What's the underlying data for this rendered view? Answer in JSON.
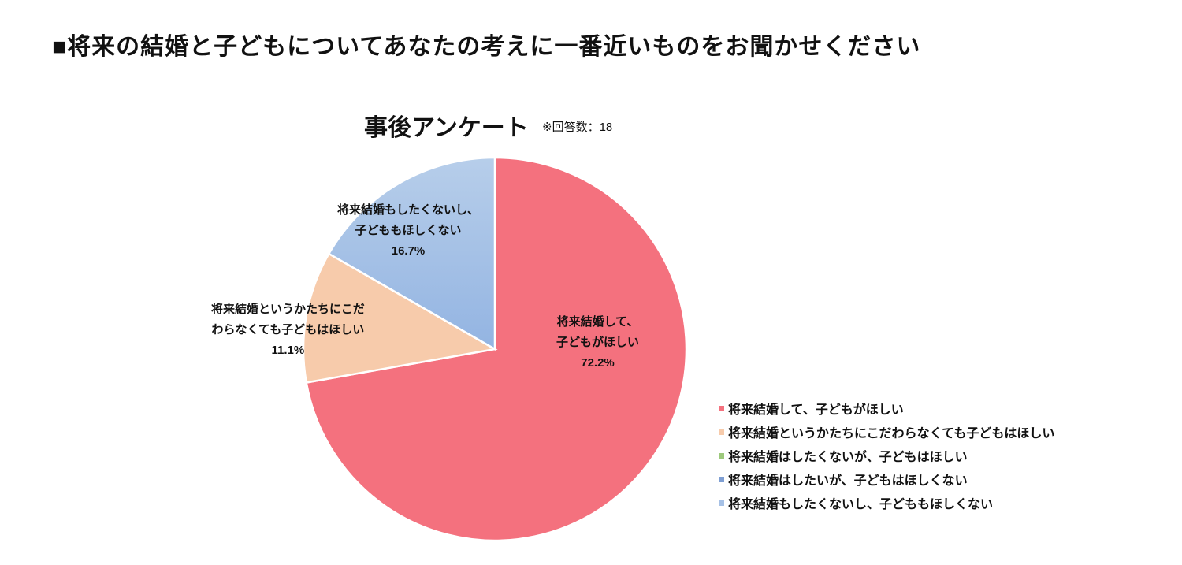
{
  "page_title": "■将来の結婚と子どもについてあなたの考えに一番近いものをお聞かせください",
  "chart_data": {
    "type": "pie",
    "title": "事後アンケート",
    "note": "※回答数：18",
    "legend_position": "bottom-right",
    "categories": [
      "将来結婚して、子どもがほしい",
      "将来結婚というかたちにこだわらなくても子どもはほしい",
      "将来結婚はしたくないが、子どもはほしい",
      "将来結婚はしたいが、子どもはほしくない",
      "将来結婚もしたくないし、子どももほしくない"
    ],
    "values": [
      72.2,
      11.1,
      0,
      0,
      16.7
    ],
    "colors": [
      "#F4717E",
      "#F7CBAB",
      "#9DC97C",
      "#7F9FD3",
      "#A6C1E6"
    ],
    "data_labels": [
      {
        "line1": "将来結婚して、",
        "line2": "子どもがほしい",
        "pct": "72.2%"
      },
      {
        "line1": "将来結婚というかたちにこだ",
        "line2": "わらなくても子どもはほしい",
        "pct": "11.1%"
      },
      null,
      null,
      {
        "line1": "将来結婚もしたくないし、",
        "line2": "子どももほしくない",
        "pct": "16.7%"
      }
    ]
  }
}
